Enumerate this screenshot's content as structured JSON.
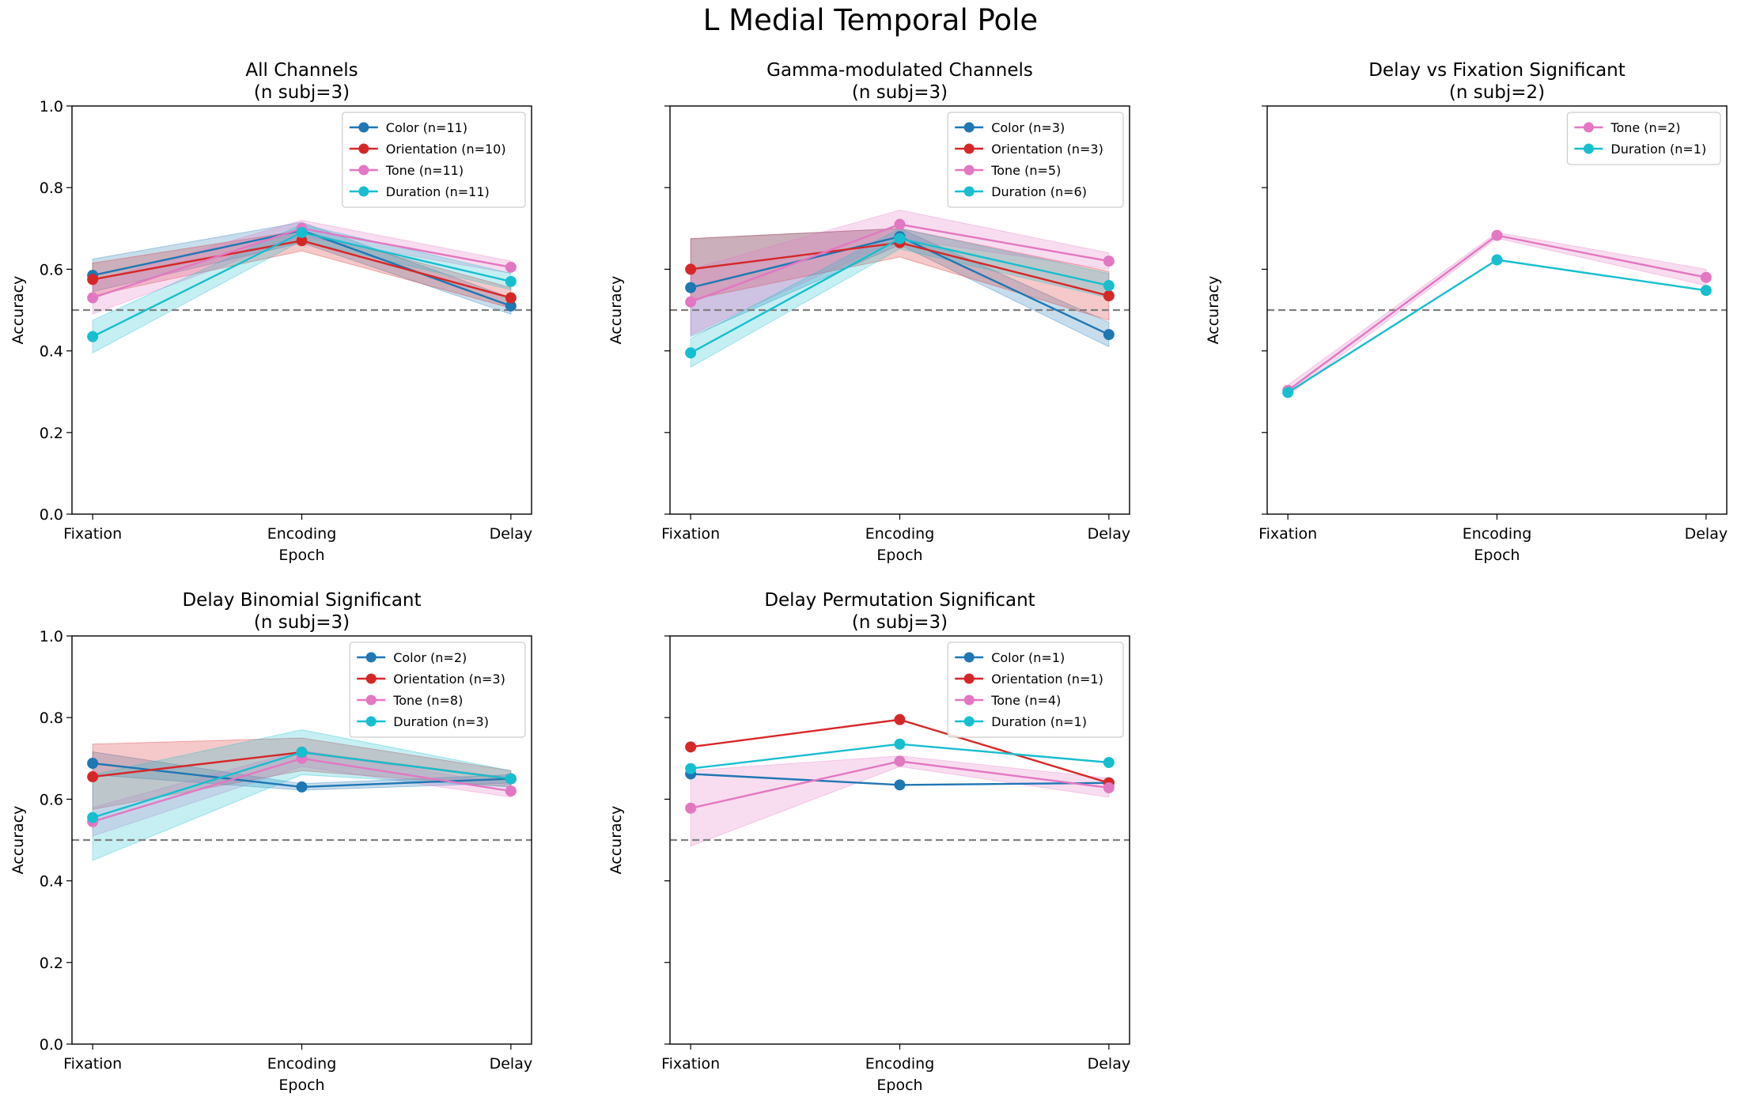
{
  "figure_title": "L Medial Temporal Pole",
  "colors": {
    "Color": "#1f77b4",
    "Orientation": "#d62728",
    "Tone": "#e377c2",
    "Duration": "#17becf",
    "chance": "#808080"
  },
  "chart_data": [
    {
      "type": "line",
      "title": "All Channels\n(n subj=3)",
      "xlabel": "Epoch",
      "ylabel": "Accuracy",
      "categories": [
        "Fixation",
        "Encoding",
        "Delay"
      ],
      "ylim": [
        0,
        1
      ],
      "yticks": [
        0.0,
        0.2,
        0.4,
        0.6,
        0.8,
        1.0
      ],
      "chance": 0.5,
      "legend_position": "top-right",
      "series": [
        {
          "name": "Color",
          "legend": "Color (n=11)",
          "values": [
            0.585,
            0.695,
            0.51
          ],
          "lower": [
            0.545,
            0.665,
            0.49
          ],
          "upper": [
            0.625,
            0.715,
            0.53
          ]
        },
        {
          "name": "Orientation",
          "legend": "Orientation (n=10)",
          "values": [
            0.575,
            0.67,
            0.53
          ],
          "lower": [
            0.535,
            0.645,
            0.505
          ],
          "upper": [
            0.615,
            0.695,
            0.555
          ]
        },
        {
          "name": "Tone",
          "legend": "Tone (n=11)",
          "values": [
            0.53,
            0.7,
            0.605
          ],
          "lower": [
            0.49,
            0.68,
            0.59
          ],
          "upper": [
            0.57,
            0.72,
            0.62
          ]
        },
        {
          "name": "Duration",
          "legend": "Duration (n=11)",
          "values": [
            0.435,
            0.69,
            0.57
          ],
          "lower": [
            0.395,
            0.67,
            0.55
          ],
          "upper": [
            0.475,
            0.71,
            0.59
          ]
        }
      ]
    },
    {
      "type": "line",
      "title": "Gamma-modulated Channels\n(n subj=3)",
      "xlabel": "Epoch",
      "ylabel": "Accuracy",
      "categories": [
        "Fixation",
        "Encoding",
        "Delay"
      ],
      "ylim": [
        0,
        1
      ],
      "yticks": [
        0.0,
        0.2,
        0.4,
        0.6,
        0.8,
        1.0
      ],
      "chance": 0.5,
      "legend_position": "top-right",
      "series": [
        {
          "name": "Color",
          "legend": "Color (n=3)",
          "values": [
            0.555,
            0.68,
            0.44
          ],
          "lower": [
            0.435,
            0.66,
            0.41
          ],
          "upper": [
            0.675,
            0.7,
            0.47
          ]
        },
        {
          "name": "Orientation",
          "legend": "Orientation (n=3)",
          "values": [
            0.6,
            0.665,
            0.535
          ],
          "lower": [
            0.525,
            0.63,
            0.475
          ],
          "upper": [
            0.675,
            0.7,
            0.595
          ]
        },
        {
          "name": "Tone",
          "legend": "Tone (n=5)",
          "values": [
            0.52,
            0.71,
            0.62
          ],
          "lower": [
            0.44,
            0.675,
            0.6
          ],
          "upper": [
            0.6,
            0.745,
            0.64
          ]
        },
        {
          "name": "Duration",
          "legend": "Duration (n=6)",
          "values": [
            0.395,
            0.675,
            0.56
          ],
          "lower": [
            0.36,
            0.65,
            0.53
          ],
          "upper": [
            0.43,
            0.7,
            0.59
          ]
        }
      ]
    },
    {
      "type": "line",
      "title": "Delay vs Fixation Significant\n(n subj=2)",
      "xlabel": "Epoch",
      "ylabel": "Accuracy",
      "categories": [
        "Fixation",
        "Encoding",
        "Delay"
      ],
      "ylim": [
        0,
        1
      ],
      "yticks": [
        0.0,
        0.2,
        0.4,
        0.6,
        0.8,
        1.0
      ],
      "chance": 0.5,
      "legend_position": "top-right",
      "series": [
        {
          "name": "Tone",
          "legend": "Tone (n=2)",
          "values": [
            0.303,
            0.683,
            0.58
          ],
          "lower": [
            0.29,
            0.676,
            0.56
          ],
          "upper": [
            0.316,
            0.69,
            0.6
          ]
        },
        {
          "name": "Duration",
          "legend": "Duration (n=1)",
          "values": [
            0.298,
            0.623,
            0.548
          ]
        }
      ]
    },
    {
      "type": "line",
      "title": "Delay Binomial Significant\n(n subj=3)",
      "xlabel": "Epoch",
      "ylabel": "Accuracy",
      "categories": [
        "Fixation",
        "Encoding",
        "Delay"
      ],
      "ylim": [
        0,
        1
      ],
      "yticks": [
        0.0,
        0.2,
        0.4,
        0.6,
        0.8,
        1.0
      ],
      "chance": 0.5,
      "legend_position": "top-right",
      "series": [
        {
          "name": "Color",
          "legend": "Color (n=2)",
          "values": [
            0.688,
            0.63,
            0.65
          ],
          "lower": [
            0.66,
            0.622,
            0.64
          ],
          "upper": [
            0.716,
            0.638,
            0.66
          ]
        },
        {
          "name": "Orientation",
          "legend": "Orientation (n=3)",
          "values": [
            0.655,
            0.715,
            0.65
          ],
          "lower": [
            0.575,
            0.67,
            0.63
          ],
          "upper": [
            0.735,
            0.75,
            0.67
          ]
        },
        {
          "name": "Tone",
          "legend": "Tone (n=8)",
          "values": [
            0.545,
            0.7,
            0.62
          ],
          "lower": [
            0.51,
            0.68,
            0.605
          ],
          "upper": [
            0.58,
            0.72,
            0.635
          ]
        },
        {
          "name": "Duration",
          "legend": "Duration (n=3)",
          "values": [
            0.555,
            0.715,
            0.65
          ],
          "lower": [
            0.45,
            0.66,
            0.63
          ],
          "upper": [
            0.66,
            0.77,
            0.67
          ]
        }
      ]
    },
    {
      "type": "line",
      "title": "Delay Permutation Significant\n(n subj=3)",
      "xlabel": "Epoch",
      "ylabel": "Accuracy",
      "categories": [
        "Fixation",
        "Encoding",
        "Delay"
      ],
      "ylim": [
        0,
        1
      ],
      "yticks": [
        0.0,
        0.2,
        0.4,
        0.6,
        0.8,
        1.0
      ],
      "chance": 0.5,
      "legend_position": "top-right",
      "series": [
        {
          "name": "Color",
          "legend": "Color (n=1)",
          "values": [
            0.662,
            0.635,
            0.64
          ]
        },
        {
          "name": "Orientation",
          "legend": "Orientation (n=1)",
          "values": [
            0.728,
            0.795,
            0.64
          ]
        },
        {
          "name": "Tone",
          "legend": "Tone (n=4)",
          "values": [
            0.578,
            0.693,
            0.628
          ],
          "lower": [
            0.485,
            0.68,
            0.605
          ],
          "upper": [
            0.67,
            0.706,
            0.651
          ]
        },
        {
          "name": "Duration",
          "legend": "Duration (n=1)",
          "values": [
            0.675,
            0.735,
            0.69
          ]
        }
      ]
    }
  ]
}
